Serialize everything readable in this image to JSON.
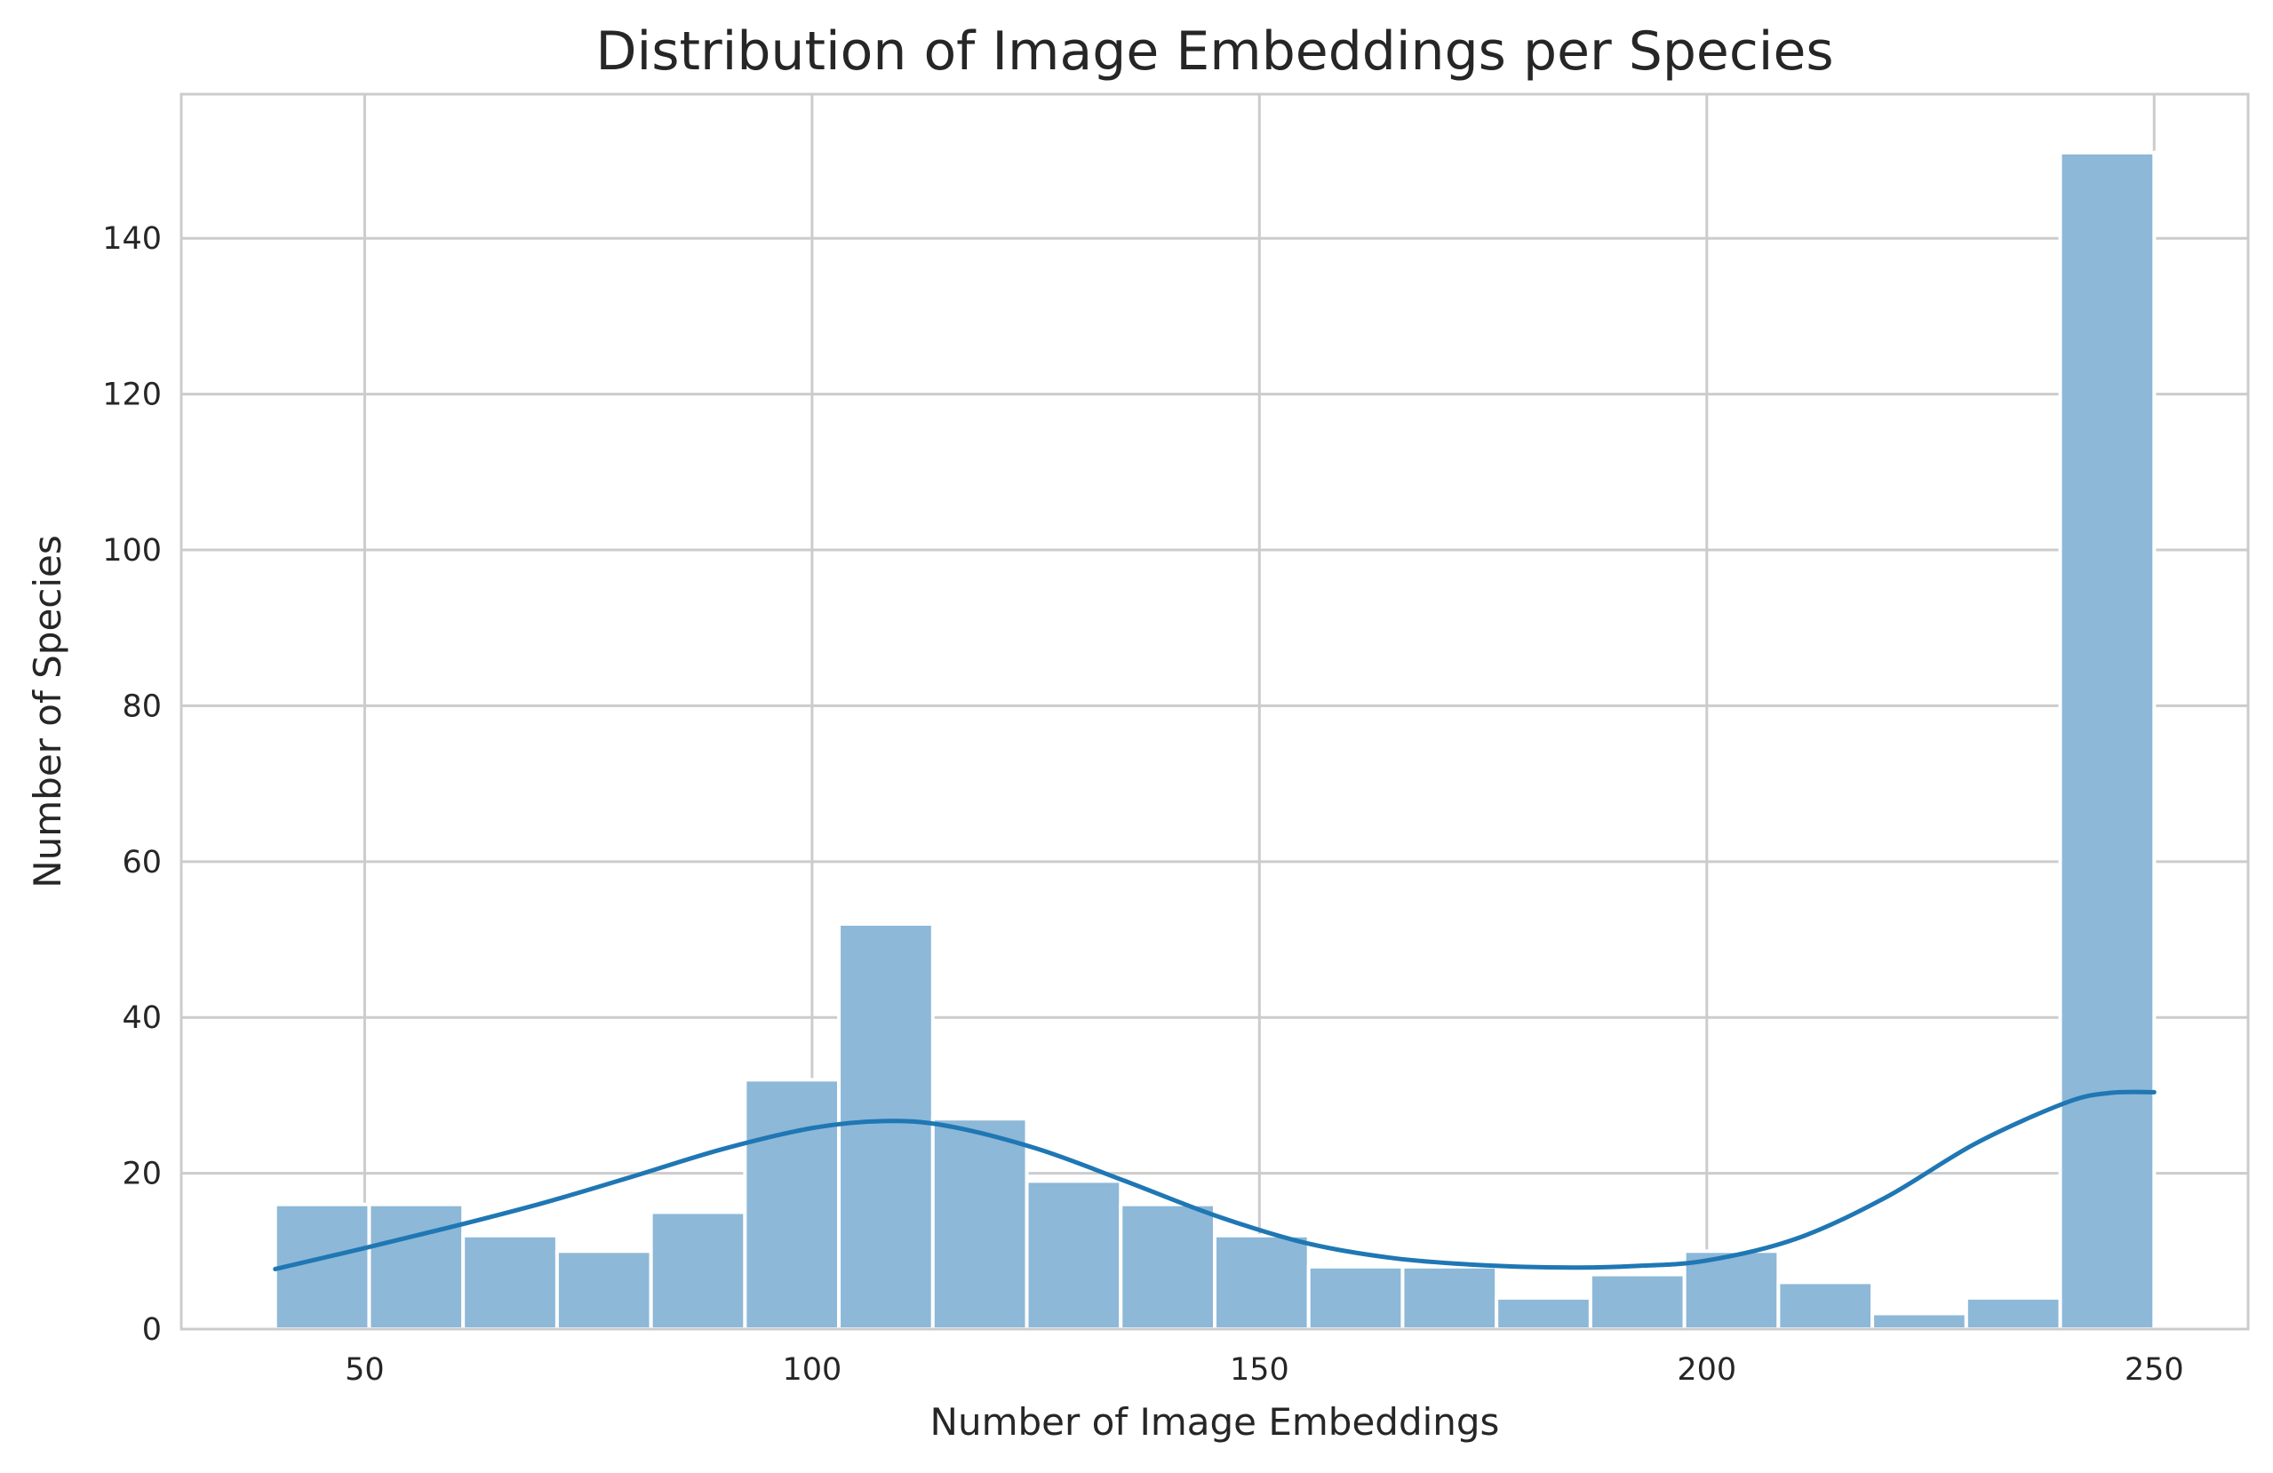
{
  "chart_data": {
    "type": "bar",
    "title": "Distribution of Image Embeddings per Species",
    "xlabel": "Number of Image Embeddings",
    "ylabel": "Number of Species",
    "xlim": [
      29.5,
      260.5
    ],
    "ylim": [
      0,
      158.5
    ],
    "xticks": [
      50,
      100,
      150,
      200,
      250
    ],
    "yticks": [
      0,
      20,
      40,
      60,
      80,
      100,
      120,
      140
    ],
    "grid": true,
    "bin_edges": [
      40,
      50.5,
      61,
      71.5,
      82,
      92.5,
      103,
      113.5,
      124,
      134.5,
      145,
      155.5,
      166,
      176.5,
      187,
      197.5,
      208,
      218.5,
      229,
      239.5,
      250
    ],
    "values": [
      16,
      16,
      12,
      10,
      15,
      32,
      52,
      27,
      19,
      16,
      12,
      8,
      8,
      4,
      7,
      10,
      6,
      2,
      4,
      151
    ],
    "bar_color": "#8db8d8",
    "bar_edge_color": "#ffffff",
    "kde": {
      "color": "#1f77b4",
      "x": [
        40,
        50,
        60,
        70,
        80,
        90,
        100,
        108,
        115,
        125,
        135,
        145,
        155,
        165,
        175,
        185,
        192,
        200,
        210,
        220,
        230,
        240,
        245,
        250
      ],
      "y": [
        7.7,
        10.4,
        13.2,
        16.2,
        19.6,
        23.1,
        25.8,
        26.7,
        26.1,
        23.2,
        19.0,
        14.6,
        11.1,
        9.1,
        8.2,
        7.9,
        8.1,
        8.8,
        11.6,
        16.9,
        23.8,
        29.0,
        30.3,
        30.4
      ]
    }
  }
}
